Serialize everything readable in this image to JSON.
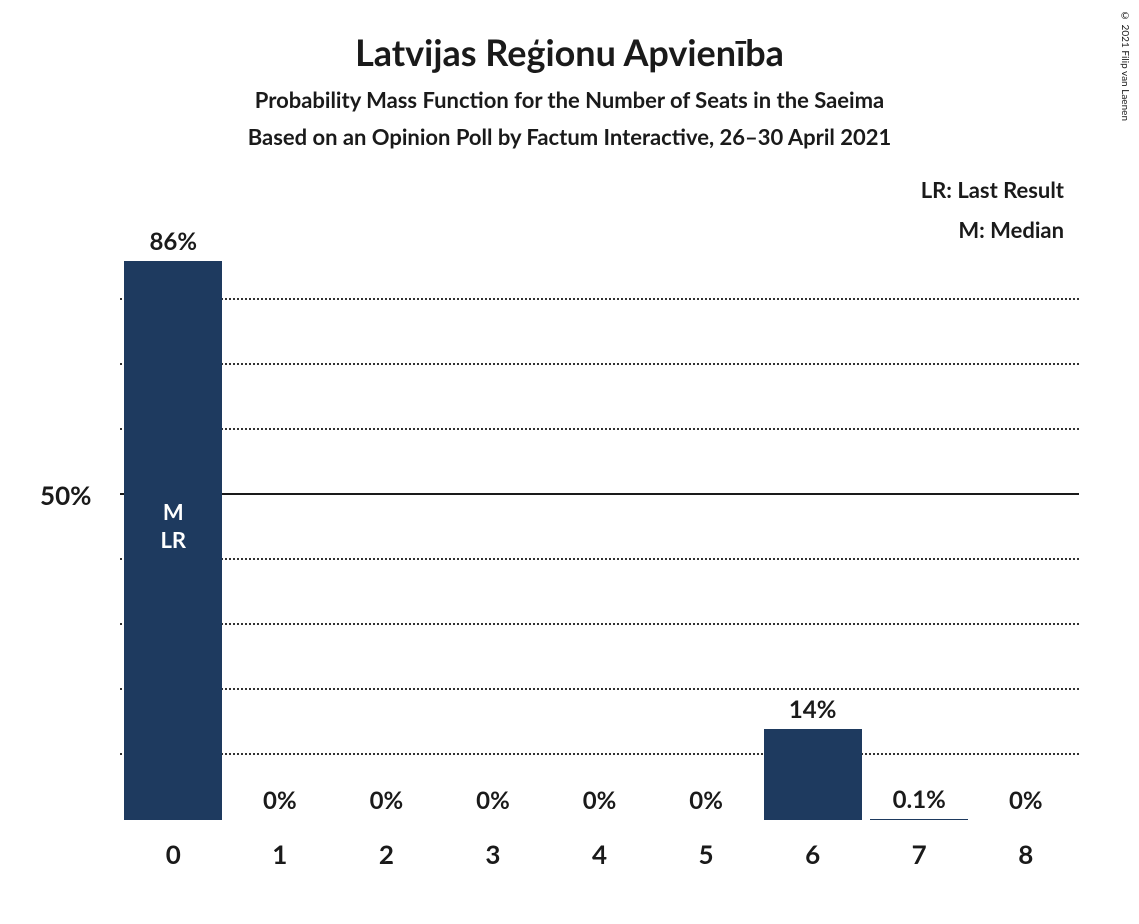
{
  "title": "Latvijas Reģionu Apvienība",
  "subtitle1": "Probability Mass Function for the Number of Seats in the Saeima",
  "subtitle2": "Based on an Opinion Poll by Factum Interactive, 26–30 April 2021",
  "copyright": "© 2021 Filip van Laenen",
  "chart": {
    "type": "bar",
    "bar_color": "#1e3a5f",
    "background_color": "#ffffff",
    "grid_color": "#333333",
    "text_color": "#1a1a1a",
    "bar_text_color": "#ffffff",
    "ylim_max": 100,
    "y_axis_label": "50%",
    "y_axis_label_position": 50,
    "gridlines": [
      10,
      20,
      30,
      40,
      60,
      70,
      80
    ],
    "gridline_solid": 50,
    "categories": [
      "0",
      "1",
      "2",
      "3",
      "4",
      "5",
      "6",
      "7",
      "8"
    ],
    "values": [
      86,
      0,
      0,
      0,
      0,
      0,
      14,
      0.1,
      0
    ],
    "value_labels": [
      "86%",
      "0%",
      "0%",
      "0%",
      "0%",
      "0%",
      "14%",
      "0.1%",
      "0%"
    ],
    "annotations": {
      "0": [
        "M",
        "LR"
      ]
    },
    "legend": {
      "LR": "Last Result",
      "M": "Median"
    }
  }
}
